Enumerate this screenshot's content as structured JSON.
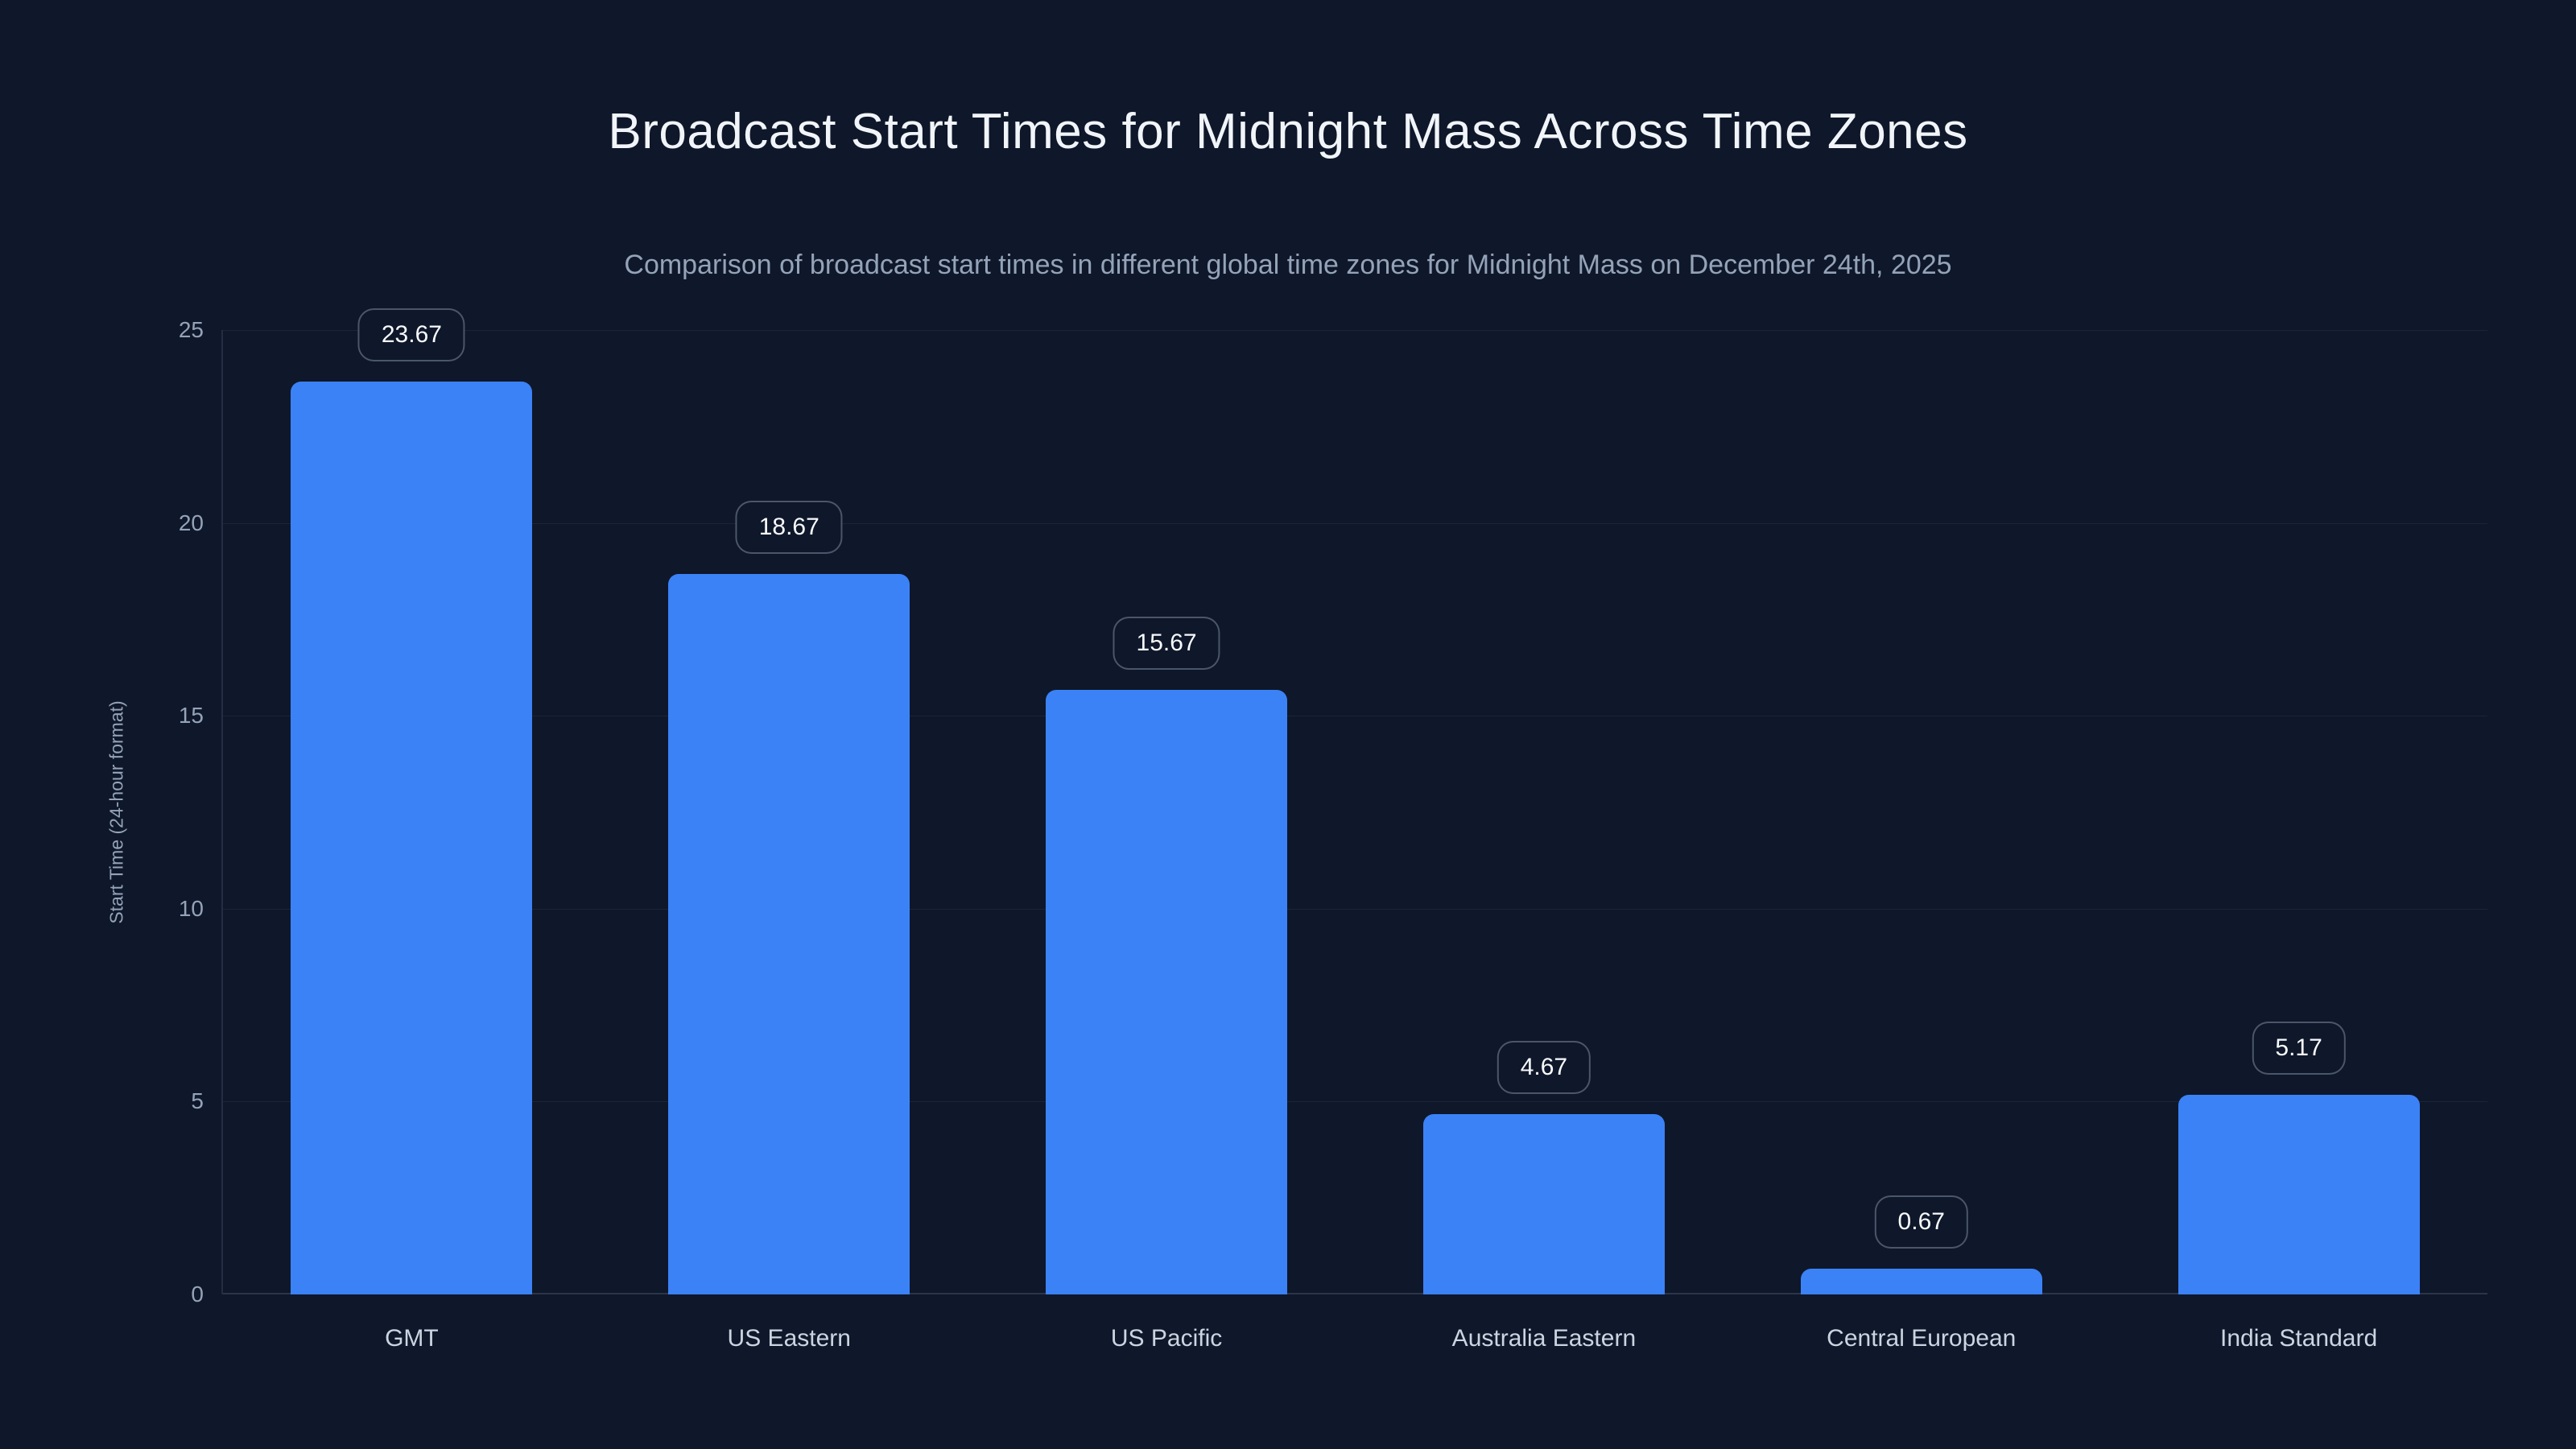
{
  "chart_data": {
    "type": "bar",
    "title": "Broadcast Start Times for Midnight Mass Across Time Zones",
    "subtitle": "Comparison of broadcast start times in different global time zones for Midnight Mass on December 24th, 2025",
    "categories": [
      "GMT",
      "US Eastern",
      "US Pacific",
      "Australia Eastern",
      "Central European",
      "India Standard"
    ],
    "values": [
      23.67,
      18.67,
      15.67,
      4.67,
      0.67,
      5.17
    ],
    "value_labels": [
      "23.67",
      "18.67",
      "15.67",
      "4.67",
      "0.67",
      "5.17"
    ],
    "xlabel": "",
    "ylabel": "Start Time (24-hour format)",
    "ylim": [
      0,
      25
    ],
    "yticks": [
      0,
      5,
      10,
      15,
      20,
      25
    ],
    "grid": true,
    "legend_position": "none",
    "colors": {
      "bar": "#3b82f6",
      "background": "#0f172a",
      "title_text": "#f1f5f9",
      "subtitle_text": "#94a3b8",
      "tick_text": "#94a3b8",
      "category_text": "#cbd5e1",
      "badge_text": "#f8fafc"
    }
  }
}
